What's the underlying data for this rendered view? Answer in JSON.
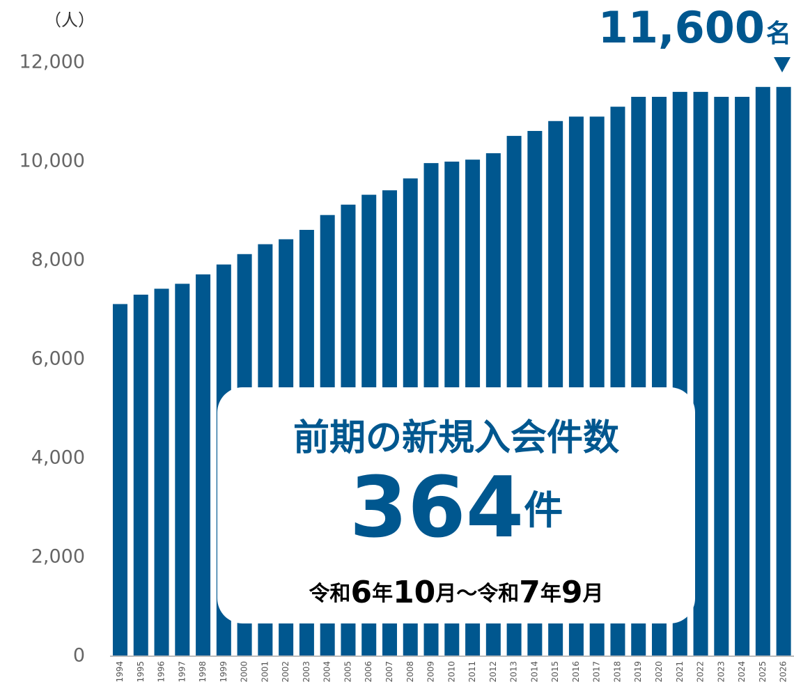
{
  "chart_data": {
    "type": "bar",
    "unit_label": "（人）",
    "categories": [
      "1994",
      "1995",
      "1996",
      "1997",
      "1998",
      "1999",
      "2000",
      "2001",
      "2002",
      "2003",
      "2004",
      "2005",
      "2006",
      "2007",
      "2008",
      "2009",
      "2010",
      "2011",
      "2012",
      "2013",
      "2014",
      "2015",
      "2016",
      "2017",
      "2018",
      "2019",
      "2020",
      "2021",
      "2022",
      "2023",
      "2024",
      "2025",
      "2026"
    ],
    "values": [
      7120,
      7310,
      7430,
      7530,
      7720,
      7920,
      8130,
      8330,
      8430,
      8620,
      8920,
      9130,
      9330,
      9420,
      9660,
      9970,
      10000,
      10040,
      10170,
      10520,
      10620,
      10820,
      10910,
      10910,
      11110,
      11310,
      11310,
      11410,
      11410,
      11310,
      11310,
      11510,
      11510
    ],
    "color": "#00578f",
    "ylim": [
      0,
      12000
    ],
    "yticks": [
      0,
      {
        "value": 2000,
        "label": "2,000"
      },
      {
        "value": 4000,
        "label": "4,000"
      },
      {
        "value": 6000,
        "label": "6,000"
      },
      {
        "value": 8000,
        "label": "8,000"
      },
      {
        "value": 10000,
        "label": "10,000"
      },
      {
        "value": 12000,
        "label": "12,000"
      }
    ],
    "annotation": {
      "number": "11,600",
      "unit": "名"
    },
    "callout": {
      "title": "前期の新規入会件数",
      "number": "364",
      "unit": "件",
      "period": [
        "令和",
        "6",
        "年",
        "10",
        "月～令和",
        "7",
        "年",
        "9",
        "月"
      ]
    }
  }
}
